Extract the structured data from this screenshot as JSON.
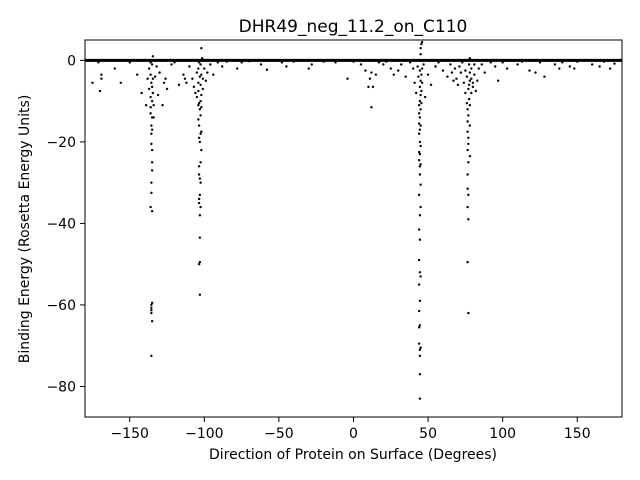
{
  "chart_data": {
    "type": "scatter",
    "title": "DHR49_neg_11.2_on_C110",
    "xlabel": "Direction of Protein on Surface (Degrees)",
    "ylabel": "Binding Energy (Rosetta Energy Units)",
    "xlim": [
      -180,
      180
    ],
    "ylim": [
      -87.5,
      5
    ],
    "xticks": [
      -150,
      -100,
      -50,
      0,
      50,
      100,
      150
    ],
    "xtick_labels": [
      "−150",
      "−100",
      "−50",
      "0",
      "50",
      "100",
      "150"
    ],
    "yticks": [
      0,
      -20,
      -40,
      -60,
      -80
    ],
    "ytick_labels": [
      "0",
      "−20",
      "−40",
      "−60",
      "−80"
    ],
    "grid": false,
    "marker_color": "#000000",
    "reference_line": {
      "y": 0,
      "color": "#000000"
    },
    "series": [
      {
        "points": [
          [
            -175,
            -5.5
          ],
          [
            -171,
            -0.5
          ],
          [
            -170,
            -7.5
          ],
          [
            -169,
            -4.5
          ],
          [
            -169,
            -3.5
          ],
          [
            -160,
            -2
          ],
          [
            -156,
            -5.5
          ],
          [
            -150,
            -0.5
          ],
          [
            -145,
            -3.5
          ],
          [
            -142,
            -8
          ],
          [
            -139,
            -11
          ],
          [
            -138,
            -4.5
          ],
          [
            -137,
            -7
          ],
          [
            -137,
            -2
          ],
          [
            -136,
            -0.5
          ],
          [
            -136,
            -3.5
          ],
          [
            -136,
            -9
          ],
          [
            -136,
            -11.5
          ],
          [
            -136,
            -13
          ],
          [
            -136,
            -36
          ],
          [
            -135.5,
            -5.5
          ],
          [
            -135.5,
            -16
          ],
          [
            -135.5,
            -18
          ],
          [
            -135.5,
            -20.5
          ],
          [
            -135.5,
            -30
          ],
          [
            -135.5,
            -32.5
          ],
          [
            -135.5,
            -60
          ],
          [
            -135.5,
            -60.7
          ],
          [
            -135.5,
            -61.3
          ],
          [
            -135.5,
            -62
          ],
          [
            -135.5,
            -72.5
          ],
          [
            -135,
            -1
          ],
          [
            -135,
            -6.5
          ],
          [
            -135,
            -10
          ],
          [
            -135,
            -14
          ],
          [
            -135,
            -17
          ],
          [
            -135,
            -22
          ],
          [
            -135,
            -25
          ],
          [
            -135,
            -27
          ],
          [
            -135,
            -37
          ],
          [
            -135,
            -59.5
          ],
          [
            -135,
            -64
          ],
          [
            -134.5,
            0
          ],
          [
            -134.5,
            1
          ],
          [
            -134.5,
            -4.5
          ],
          [
            -134.5,
            -8
          ],
          [
            -134,
            -11
          ],
          [
            -134,
            -14
          ],
          [
            -133,
            -4
          ],
          [
            -132,
            -1.5
          ],
          [
            -131,
            -8.5
          ],
          [
            -130,
            -3
          ],
          [
            -128,
            -11
          ],
          [
            -127,
            -5.5
          ],
          [
            -126,
            -4.5
          ],
          [
            -125,
            -7
          ],
          [
            -122,
            -1
          ],
          [
            -120,
            -0.5
          ],
          [
            -117,
            -6
          ],
          [
            -114,
            -3.5
          ],
          [
            -113,
            -4.5
          ],
          [
            -112,
            -5.5
          ],
          [
            -110,
            -1.5
          ],
          [
            -108,
            -4.5
          ],
          [
            -107,
            -6.5
          ],
          [
            -106,
            -8
          ],
          [
            -105,
            -9
          ],
          [
            -105,
            -3
          ],
          [
            -104,
            -5.5
          ],
          [
            -104,
            -7.5
          ],
          [
            -104,
            -11
          ],
          [
            -104,
            -14.5
          ],
          [
            -104,
            -2
          ],
          [
            -103.5,
            -0.5
          ],
          [
            -103.5,
            -10.5
          ],
          [
            -103.5,
            -16
          ],
          [
            -103.5,
            -19
          ],
          [
            -103.5,
            -26
          ],
          [
            -103.5,
            -28
          ],
          [
            -103.5,
            -34
          ],
          [
            -103.5,
            -35
          ],
          [
            -103.5,
            -50
          ],
          [
            -103,
            -4
          ],
          [
            -103,
            -12
          ],
          [
            -103,
            -20
          ],
          [
            -103,
            -29
          ],
          [
            -103,
            -33
          ],
          [
            -103,
            -38
          ],
          [
            -103,
            -43.5
          ],
          [
            -103,
            -49.5
          ],
          [
            -103,
            -57.5
          ],
          [
            -102.5,
            -1
          ],
          [
            -102.5,
            -6
          ],
          [
            -102.5,
            -10
          ],
          [
            -102.5,
            -13.5
          ],
          [
            -102.5,
            -18
          ],
          [
            -102.5,
            -25
          ],
          [
            -102.5,
            -30
          ],
          [
            -102.5,
            -36
          ],
          [
            -102,
            3
          ],
          [
            -102,
            -3.5
          ],
          [
            -102,
            -8.5
          ],
          [
            -102,
            -11.5
          ],
          [
            -102,
            -17.5
          ],
          [
            -102,
            -22
          ],
          [
            -101.5,
            0.5
          ],
          [
            -101,
            -4.5
          ],
          [
            -101,
            -7
          ],
          [
            -100,
            -2
          ],
          [
            -99,
            -5
          ],
          [
            -98,
            -3
          ],
          [
            -96,
            -1
          ],
          [
            -94,
            -3.5
          ],
          [
            -91,
            -0.5
          ],
          [
            -88,
            -1.5
          ],
          [
            -85,
            -0.3
          ],
          [
            -78,
            -2
          ],
          [
            -75,
            -0.5
          ],
          [
            -70,
            -0.2
          ],
          [
            -62,
            -1
          ],
          [
            -58,
            -2.3
          ],
          [
            -48,
            -0.5
          ],
          [
            -45,
            -1.5
          ],
          [
            -40,
            -0.3
          ],
          [
            -30,
            -2
          ],
          [
            -28,
            -1
          ],
          [
            -20,
            -0.3
          ],
          [
            -12,
            -0.5
          ],
          [
            -4,
            -4.5
          ],
          [
            0,
            -0.3
          ],
          [
            5,
            -1
          ],
          [
            8,
            -2.5
          ],
          [
            10,
            -6.5
          ],
          [
            11,
            -4.5
          ],
          [
            12,
            -3
          ],
          [
            12,
            -11.5
          ],
          [
            13,
            -6.5
          ],
          [
            15,
            -3.5
          ],
          [
            17,
            -0.5
          ],
          [
            20,
            -1
          ],
          [
            22,
            -0.3
          ],
          [
            25,
            -2
          ],
          [
            27,
            -3.5
          ],
          [
            30,
            -2.5
          ],
          [
            32,
            -1
          ],
          [
            35,
            -4
          ],
          [
            38,
            -0.5
          ],
          [
            40,
            -2
          ],
          [
            41,
            -5.5
          ],
          [
            42,
            -8
          ],
          [
            43,
            -1.5
          ],
          [
            43.5,
            -4
          ],
          [
            44,
            -11
          ],
          [
            44,
            -13
          ],
          [
            44,
            -15.5
          ],
          [
            44,
            -18
          ],
          [
            44,
            -22.5
          ],
          [
            44,
            -24.5
          ],
          [
            44,
            -33
          ],
          [
            44,
            -41.5
          ],
          [
            44,
            -49
          ],
          [
            44,
            -55
          ],
          [
            44,
            -61.5
          ],
          [
            44,
            -65.5
          ],
          [
            44,
            -69.5
          ],
          [
            44.5,
            -2.5
          ],
          [
            44.5,
            -6.5
          ],
          [
            44.5,
            -10
          ],
          [
            44.5,
            -14
          ],
          [
            44.5,
            -17
          ],
          [
            44.5,
            -20
          ],
          [
            44.5,
            -23
          ],
          [
            44.5,
            -26
          ],
          [
            44.5,
            -28
          ],
          [
            44.5,
            -38
          ],
          [
            44.5,
            -44
          ],
          [
            44.5,
            -52
          ],
          [
            44.5,
            -59
          ],
          [
            44.5,
            -65
          ],
          [
            44.5,
            -71
          ],
          [
            44.5,
            -72.5
          ],
          [
            44.5,
            -77
          ],
          [
            44.5,
            -83
          ],
          [
            45,
            0
          ],
          [
            45,
            1.5
          ],
          [
            45,
            3
          ],
          [
            45,
            -5
          ],
          [
            45,
            -8.5
          ],
          [
            45,
            -12
          ],
          [
            45,
            -16
          ],
          [
            45,
            -21
          ],
          [
            45,
            -25.5
          ],
          [
            45,
            -30.5
          ],
          [
            45,
            -36
          ],
          [
            45,
            -53
          ],
          [
            45,
            -70.5
          ],
          [
            45.5,
            4
          ],
          [
            45.5,
            -3.5
          ],
          [
            45.5,
            -7.5
          ],
          [
            45.5,
            -10.5
          ],
          [
            46,
            4.5
          ],
          [
            46,
            -2
          ],
          [
            46,
            -5.5
          ],
          [
            47,
            -1
          ],
          [
            48,
            -9
          ],
          [
            50,
            -3.5
          ],
          [
            52,
            -6
          ],
          [
            55,
            -1.5
          ],
          [
            57,
            -0.5
          ],
          [
            60,
            -2.5
          ],
          [
            63,
            -4
          ],
          [
            65,
            -1
          ],
          [
            66,
            -3
          ],
          [
            67,
            -5
          ],
          [
            68,
            -2
          ],
          [
            69,
            -4.5
          ],
          [
            70,
            -6
          ],
          [
            71,
            -1.5
          ],
          [
            72,
            -3
          ],
          [
            73,
            -0.5
          ],
          [
            74,
            -5.5
          ],
          [
            75,
            -8
          ],
          [
            75,
            -2.5
          ],
          [
            76,
            -10.5
          ],
          [
            76,
            -4
          ],
          [
            76.5,
            -12
          ],
          [
            76.5,
            -15
          ],
          [
            76.5,
            -17.5
          ],
          [
            76.5,
            -22
          ],
          [
            76.5,
            -28
          ],
          [
            76.5,
            -31.5
          ],
          [
            76.5,
            -36
          ],
          [
            76.5,
            -49.5
          ],
          [
            77,
            -62
          ],
          [
            77,
            -7
          ],
          [
            77,
            -13.5
          ],
          [
            77,
            -19
          ],
          [
            77,
            -20.5
          ],
          [
            77,
            -25
          ],
          [
            77,
            -33
          ],
          [
            77,
            -39
          ],
          [
            77.5,
            -1
          ],
          [
            77.5,
            -6
          ],
          [
            77.5,
            -9.5
          ],
          [
            78,
            0.5
          ],
          [
            78,
            -3
          ],
          [
            78,
            -5
          ],
          [
            78,
            -11
          ],
          [
            78,
            -16
          ],
          [
            78,
            -23.5
          ],
          [
            79,
            -2
          ],
          [
            79,
            -4.5
          ],
          [
            79,
            -8
          ],
          [
            80,
            -5.5
          ],
          [
            80,
            -6.5
          ],
          [
            81,
            -1
          ],
          [
            81,
            -3.5
          ],
          [
            82,
            -7.5
          ],
          [
            83,
            -5
          ],
          [
            84,
            -2
          ],
          [
            86,
            -1
          ],
          [
            88,
            -3
          ],
          [
            92,
            -0.5
          ],
          [
            95,
            -1.5
          ],
          [
            97,
            -5
          ],
          [
            100,
            -0.5
          ],
          [
            103,
            -2
          ],
          [
            110,
            -1
          ],
          [
            113,
            -0.3
          ],
          [
            118,
            -2.5
          ],
          [
            122,
            -3
          ],
          [
            125,
            -0.5
          ],
          [
            128,
            -4
          ],
          [
            135,
            -1
          ],
          [
            138,
            -2
          ],
          [
            140,
            -0.5
          ],
          [
            145,
            -1.5
          ],
          [
            148,
            -2
          ],
          [
            150,
            -0.3
          ],
          [
            160,
            -1
          ],
          [
            165,
            -1.5
          ],
          [
            168,
            -0.3
          ],
          [
            172,
            -2
          ],
          [
            175,
            -0.8
          ]
        ]
      }
    ]
  }
}
